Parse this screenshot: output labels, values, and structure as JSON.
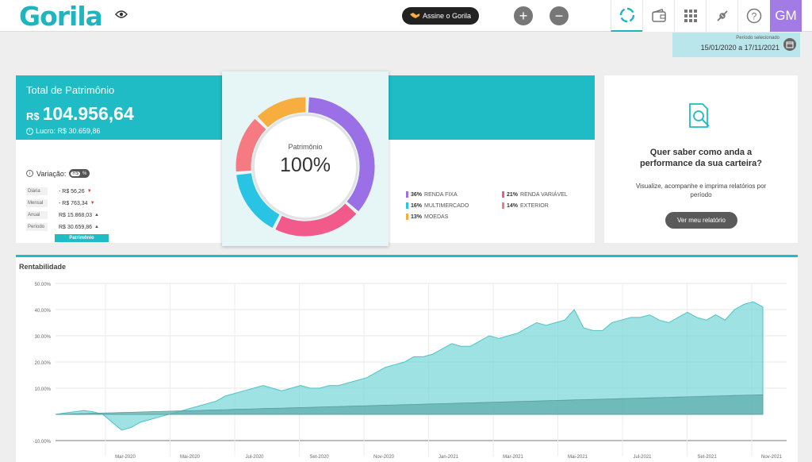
{
  "header": {
    "logo": "Gorila",
    "subscribe_label": "Assine o Gorila",
    "add_label": "+",
    "remove_label": "−",
    "avatar_initials": "GM",
    "nav_icons": [
      "loading-ring-icon",
      "wallet-icon",
      "grid-icon",
      "plug-icon",
      "help-icon"
    ]
  },
  "period": {
    "label": "Período selecionado",
    "value": "15/01/2020 a 17/11/2021"
  },
  "summary": {
    "title": "Total de Patrimônio",
    "currency": "R$",
    "value": "104.956,64",
    "profit": "Lucro: R$ 30.659,86",
    "variation_label": "Variação:",
    "toggle_currency": "R$",
    "toggle_percent": "%",
    "rows": [
      {
        "label": "Diária",
        "value": "- R$ 56,26",
        "trend": "down"
      },
      {
        "label": "Mensal",
        "value": "- R$ 763,34",
        "trend": "down"
      },
      {
        "label": "Anual",
        "value": "R$ 15.868,03",
        "trend": "up"
      },
      {
        "label": "Período",
        "value": "R$ 30.659,86",
        "trend": "up"
      }
    ],
    "tab_label": "Patrimônio"
  },
  "allocation": {
    "center_label": "Patrimônio",
    "center_value": "100%",
    "segments": [
      {
        "pct": "36%",
        "name": "RENDA FIXA",
        "share": 36,
        "color": "#9b6fe6"
      },
      {
        "pct": "21%",
        "name": "RENDA VARIÁVEL",
        "share": 21,
        "color": "#f15a8a"
      },
      {
        "pct": "16%",
        "name": "MULTIMERCADO",
        "share": 16,
        "color": "#29c4e4"
      },
      {
        "pct": "14%",
        "name": "EXTERIOR",
        "share": 14,
        "color": "#f57a82"
      },
      {
        "pct": "13%",
        "name": "MOEDAS",
        "share": 13,
        "color": "#f8ae3f"
      }
    ]
  },
  "report": {
    "question": "Quer saber como anda a performance da sua carteira?",
    "description": "Visualize, acompanhe e imprima relatórios por período",
    "button_label": "Ver meu relatório"
  },
  "colors": {
    "accent": "#1fbcc5",
    "avatar": "#a37be6",
    "area": "#7fd8d9",
    "benchmark": "#5faeae"
  },
  "chart_data": {
    "type": "area",
    "title": "Rentabilidade",
    "ylim": [
      -10,
      50
    ],
    "yticks": [
      "50.00%",
      "40.00%",
      "30.00%",
      "20.00%",
      "10.00%",
      "-10.00%"
    ],
    "xticks": [
      "Mar-2020",
      "Mai-2020",
      "Jul-2020",
      "Set-2020",
      "Nov-2020",
      "Jan-2021",
      "Mar-2021",
      "Mai-2021",
      "Jul-2021",
      "Set-2021",
      "Nov-2021"
    ],
    "series": [
      {
        "values": [
          0,
          0.5,
          1,
          1.5,
          1,
          0,
          -3,
          -6,
          -5,
          -3,
          -2,
          -1,
          0,
          1,
          2,
          3,
          4,
          5,
          7,
          8,
          9,
          10,
          11,
          10,
          9,
          10,
          11,
          10,
          10,
          11,
          11,
          12,
          13,
          14,
          16,
          18,
          19,
          20,
          22,
          22,
          23,
          25,
          27,
          26,
          26,
          28,
          30,
          29,
          30,
          31,
          33,
          35,
          34,
          35,
          36,
          40,
          33,
          32,
          32,
          35,
          36,
          37,
          37,
          38,
          36,
          35,
          37,
          39,
          37,
          36,
          38,
          36,
          40,
          42,
          43,
          41
        ]
      },
      {
        "values": [
          0,
          0.1,
          0.2,
          0.3,
          0.4,
          0.5,
          0.6,
          0.7,
          0.8,
          0.9,
          1,
          1.1,
          1.2,
          1.3,
          1.4,
          1.5,
          1.6,
          1.7,
          1.8,
          1.9,
          2,
          2.1,
          2.2,
          2.3,
          2.4,
          2.5,
          2.6,
          2.7,
          2.8,
          2.9,
          3,
          3.1,
          3.2,
          3.3,
          3.4,
          3.5,
          3.6,
          3.7,
          3.8,
          3.9,
          4,
          4.1,
          4.2,
          4.3,
          4.4,
          4.5,
          4.6,
          4.7,
          4.8,
          4.9,
          5,
          5.1,
          5.2,
          5.3,
          5.4,
          5.5,
          5.6,
          5.7,
          5.8,
          5.9,
          6,
          6.1,
          6.2,
          6.3,
          6.4,
          6.5,
          6.6,
          6.7,
          6.8,
          6.9,
          7,
          7.1,
          7.2,
          7.3,
          7.4,
          7.5
        ]
      }
    ]
  }
}
